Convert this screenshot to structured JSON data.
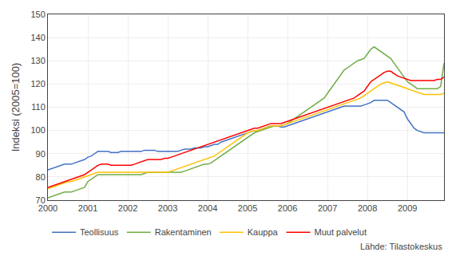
{
  "chart_data": {
    "type": "line",
    "ylabel": "Indeksi (2005=100)",
    "annotation": "Lähde: Tilastokeskus",
    "xlim": [
      2000,
      2009.917
    ],
    "xticks": [
      2000,
      2001,
      2002,
      2003,
      2004,
      2005,
      2006,
      2007,
      2008,
      2009
    ],
    "ylim": [
      70,
      150
    ],
    "yticks": [
      70,
      80,
      90,
      100,
      110,
      120,
      130,
      140,
      150
    ],
    "grid": true,
    "legend": "bottom",
    "x": [
      2000.0,
      2000.083,
      2000.167,
      2000.25,
      2000.333,
      2000.417,
      2000.5,
      2000.583,
      2000.667,
      2000.75,
      2000.833,
      2000.917,
      2001.0,
      2001.083,
      2001.167,
      2001.25,
      2001.333,
      2001.417,
      2001.5,
      2001.583,
      2001.667,
      2001.75,
      2001.833,
      2001.917,
      2002.0,
      2002.083,
      2002.167,
      2002.25,
      2002.333,
      2002.417,
      2002.5,
      2002.583,
      2002.667,
      2002.75,
      2002.833,
      2002.917,
      2003.0,
      2003.083,
      2003.167,
      2003.25,
      2003.333,
      2003.417,
      2003.5,
      2003.583,
      2003.667,
      2003.75,
      2003.833,
      2003.917,
      2004.0,
      2004.083,
      2004.167,
      2004.25,
      2004.333,
      2004.417,
      2004.5,
      2004.583,
      2004.667,
      2004.75,
      2004.833,
      2004.917,
      2005.0,
      2005.083,
      2005.167,
      2005.25,
      2005.333,
      2005.417,
      2005.5,
      2005.583,
      2005.667,
      2005.75,
      2005.833,
      2005.917,
      2006.0,
      2006.083,
      2006.167,
      2006.25,
      2006.333,
      2006.417,
      2006.5,
      2006.583,
      2006.667,
      2006.75,
      2006.833,
      2006.917,
      2007.0,
      2007.083,
      2007.167,
      2007.25,
      2007.333,
      2007.417,
      2007.5,
      2007.583,
      2007.667,
      2007.75,
      2007.833,
      2007.917,
      2008.0,
      2008.083,
      2008.167,
      2008.25,
      2008.333,
      2008.417,
      2008.5,
      2008.583,
      2008.667,
      2008.75,
      2008.833,
      2008.917,
      2009.0,
      2009.083,
      2009.167,
      2009.25,
      2009.333,
      2009.417,
      2009.5,
      2009.583,
      2009.667,
      2009.75,
      2009.833,
      2009.917
    ],
    "series": [
      {
        "name": "Teollisuus",
        "color": "#4472c4",
        "values": [
          83,
          83.5,
          84,
          84.5,
          85,
          85.5,
          85.5,
          85.5,
          86,
          86.5,
          87,
          87.5,
          88.5,
          89,
          90,
          91,
          91,
          91,
          91,
          90.5,
          90.5,
          90.5,
          91,
          91,
          91,
          91,
          91,
          91,
          91,
          91.5,
          91.5,
          91.5,
          91.5,
          91,
          91,
          91,
          91,
          91,
          91,
          91,
          91.5,
          92,
          92,
          92,
          92.5,
          92.5,
          92.5,
          93,
          93,
          93.5,
          94,
          94,
          95,
          95.5,
          96,
          96.5,
          97,
          97.5,
          98,
          98.5,
          99,
          99.5,
          100,
          100,
          100.5,
          101,
          101.5,
          102,
          102,
          102,
          101.5,
          101.5,
          102,
          102.5,
          103,
          103.5,
          104,
          104.5,
          105,
          105.5,
          106,
          106.5,
          107,
          107.5,
          108,
          108.5,
          109,
          109.5,
          110,
          110.5,
          110.5,
          110.5,
          110.5,
          110.5,
          110.5,
          111,
          111.5,
          112,
          113,
          113,
          113,
          113,
          113,
          112,
          111,
          110,
          109,
          108,
          105,
          103,
          101,
          100,
          99.5,
          99,
          99,
          99,
          99,
          99,
          99,
          99
        ]
      },
      {
        "name": "Rakentaminen",
        "color": "#70ad47",
        "values": [
          71,
          71.5,
          72,
          72.5,
          73,
          73.5,
          73.5,
          73.5,
          74,
          74.5,
          75,
          75.5,
          78,
          79,
          80,
          81,
          81,
          81,
          81,
          81,
          81,
          81,
          81,
          81,
          81,
          81,
          81,
          81,
          81,
          81.5,
          82,
          82,
          82,
          82,
          82,
          82,
          82,
          82,
          82,
          82,
          82,
          82.5,
          83,
          83.5,
          84,
          84.5,
          85,
          85.5,
          85.5,
          86,
          87,
          88,
          89,
          90,
          91,
          92,
          93,
          94,
          95,
          96,
          97,
          98,
          99,
          99.5,
          100,
          100.5,
          101,
          101.5,
          102,
          102,
          102,
          102.5,
          103,
          104,
          105,
          106,
          107,
          108,
          109,
          110,
          111,
          112,
          113,
          114,
          116,
          118,
          120,
          122,
          124,
          126,
          127,
          128,
          129,
          130,
          130.5,
          131,
          133,
          135,
          136,
          135,
          134,
          133,
          132,
          131,
          129,
          127,
          125,
          123,
          121,
          120,
          119,
          118,
          118,
          118,
          118,
          118,
          118,
          118,
          119,
          129
        ]
      },
      {
        "name": "Kauppa",
        "color": "#ffc000",
        "values": [
          75,
          75.5,
          76,
          76.5,
          77,
          77.5,
          78,
          78,
          78.5,
          79,
          79.5,
          80,
          80.5,
          81,
          81.5,
          82,
          82,
          82,
          82,
          82,
          82,
          82,
          82,
          82,
          82,
          82,
          82,
          82,
          82,
          82,
          82,
          82,
          82,
          82,
          82,
          82,
          82,
          82.5,
          83,
          83.5,
          84,
          84.5,
          85,
          85.5,
          86,
          86.5,
          87,
          87.5,
          88,
          88.5,
          89,
          90,
          91,
          92,
          93,
          94,
          95,
          96,
          97,
          98,
          99,
          99.5,
          100,
          100,
          100.5,
          101,
          101.5,
          102,
          102,
          102,
          102,
          102.5,
          103,
          103.5,
          104,
          104.5,
          105,
          105.5,
          106,
          106.5,
          107,
          107.5,
          108,
          108.5,
          109,
          109.5,
          110,
          110.5,
          111,
          111.5,
          112,
          112.5,
          113,
          113.5,
          114,
          115,
          116,
          117,
          118,
          119,
          120,
          120.5,
          121,
          120.5,
          120,
          119.5,
          119,
          118.5,
          118,
          117.5,
          117,
          116.5,
          116,
          115.5,
          115.5,
          115.5,
          115.5,
          115.5,
          115.5,
          116
        ]
      },
      {
        "name": "Muut palvelut",
        "color": "#ff0000",
        "values": [
          75.5,
          76,
          76.5,
          77,
          77.5,
          78,
          78.5,
          79,
          79.5,
          80,
          80.5,
          81,
          82,
          83,
          84,
          85,
          85.5,
          85.5,
          85.5,
          85,
          85,
          85,
          85,
          85,
          85,
          85,
          85.5,
          86,
          86.5,
          87,
          87.5,
          87.5,
          87.5,
          87.5,
          87.5,
          88,
          88,
          88.5,
          89,
          89.5,
          90,
          90.5,
          91,
          91.5,
          92,
          92.5,
          93,
          93.5,
          94,
          94.5,
          95,
          95.5,
          96,
          96.5,
          97,
          97.5,
          98,
          98.5,
          99,
          99.5,
          100,
          100.5,
          101,
          101,
          101.5,
          102,
          102.5,
          103,
          103,
          103,
          103,
          103.5,
          104,
          104.5,
          105,
          105.5,
          106,
          106.5,
          107,
          107.5,
          108,
          108.5,
          109,
          109.5,
          110,
          110.5,
          111,
          111.5,
          112,
          112.5,
          113,
          113.5,
          114,
          115,
          116,
          117,
          119,
          121,
          122,
          123,
          124,
          125,
          125.5,
          125.5,
          124.5,
          123.5,
          123,
          122.5,
          122,
          121.5,
          121.5,
          121.5,
          121.5,
          121.5,
          121.5,
          121.5,
          121.5,
          122,
          122,
          123
        ]
      }
    ]
  }
}
